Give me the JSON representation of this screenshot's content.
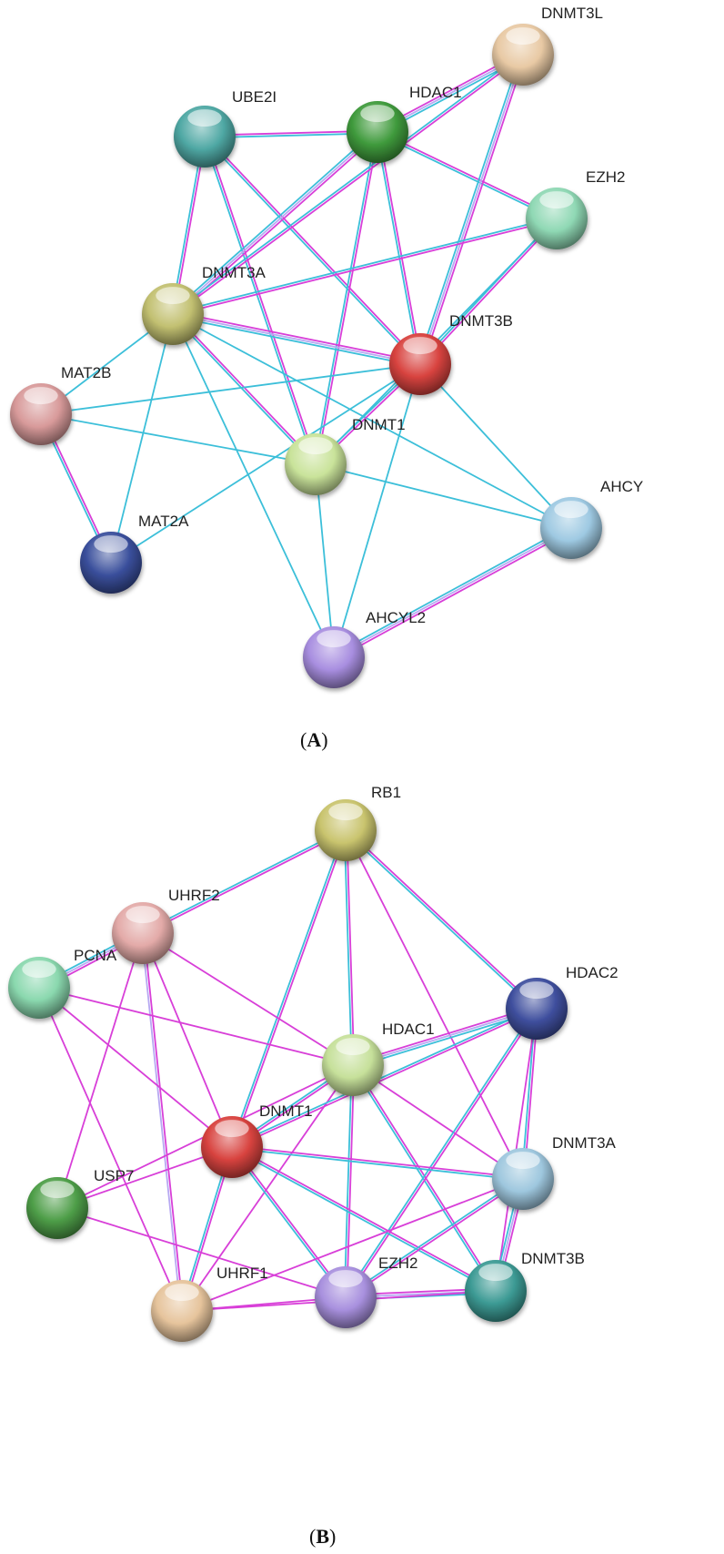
{
  "edge_colors": {
    "d": "#3cbfd9",
    "e": "#d83fd8",
    "c": "#b7a9f2"
  },
  "panels": [
    {
      "caption_open": "(",
      "caption_letter": "A",
      "caption_close": ")",
      "nodes": [
        {
          "id": "DNMT3L",
          "label": "DNMT3L",
          "color": "#e8c9a4"
        },
        {
          "id": "HDAC1",
          "label": "HDAC1",
          "color": "#3f9a3c"
        },
        {
          "id": "UBE2I",
          "label": "UBE2I",
          "color": "#4fa8a4"
        },
        {
          "id": "EZH2",
          "label": "EZH2",
          "color": "#8fd8b4"
        },
        {
          "id": "DNMT3A",
          "label": "DNMT3A",
          "color": "#c2c071"
        },
        {
          "id": "DNMT3B",
          "label": "DNMT3B",
          "color": "#d8433f"
        },
        {
          "id": "MAT2B",
          "label": "MAT2B",
          "color": "#d89a9a"
        },
        {
          "id": "DNMT1",
          "label": "DNMT1",
          "color": "#c9e39a"
        },
        {
          "id": "AHCY",
          "label": "AHCY",
          "color": "#9ec9e2"
        },
        {
          "id": "MAT2A",
          "label": "MAT2A",
          "color": "#3a4f9c"
        },
        {
          "id": "AHCYL2",
          "label": "AHCYL2",
          "color": "#a88ee0"
        }
      ],
      "edges": [
        [
          "UBE2I",
          "HDAC1",
          "ed"
        ],
        [
          "UBE2I",
          "DNMT3A",
          "ed"
        ],
        [
          "UBE2I",
          "DNMT1",
          "ed"
        ],
        [
          "UBE2I",
          "DNMT3B",
          "ed"
        ],
        [
          "HDAC1",
          "DNMT3L",
          "ecd"
        ],
        [
          "HDAC1",
          "DNMT3A",
          "ecd"
        ],
        [
          "HDAC1",
          "DNMT1",
          "ed"
        ],
        [
          "HDAC1",
          "DNMT3B",
          "ed"
        ],
        [
          "HDAC1",
          "EZH2",
          "ed"
        ],
        [
          "DNMT3L",
          "DNMT3B",
          "ecd"
        ],
        [
          "DNMT3L",
          "DNMT3A",
          "ed"
        ],
        [
          "EZH2",
          "DNMT3A",
          "ed"
        ],
        [
          "EZH2",
          "DNMT3B",
          "ed"
        ],
        [
          "EZH2",
          "DNMT1",
          "d"
        ],
        [
          "DNMT3A",
          "DNMT3B",
          "ecd"
        ],
        [
          "DNMT3A",
          "DNMT1",
          "ed"
        ],
        [
          "DNMT3A",
          "MAT2B",
          "d"
        ],
        [
          "DNMT3A",
          "MAT2A",
          "d"
        ],
        [
          "DNMT3A",
          "AHCYL2",
          "d"
        ],
        [
          "DNMT3A",
          "AHCY",
          "d"
        ],
        [
          "DNMT3B",
          "DNMT1",
          "ed"
        ],
        [
          "DNMT3B",
          "MAT2B",
          "d"
        ],
        [
          "DNMT3B",
          "MAT2A",
          "d"
        ],
        [
          "DNMT3B",
          "AHCY",
          "d"
        ],
        [
          "DNMT3B",
          "AHCYL2",
          "d"
        ],
        [
          "DNMT1",
          "MAT2B",
          "d"
        ],
        [
          "DNMT1",
          "AHCY",
          "d"
        ],
        [
          "DNMT1",
          "AHCYL2",
          "d"
        ],
        [
          "MAT2B",
          "MAT2A",
          "ed"
        ],
        [
          "AHCY",
          "AHCYL2",
          "ecd"
        ]
      ]
    },
    {
      "caption_open": "(",
      "caption_letter": "B",
      "caption_close": ")",
      "nodes": [
        {
          "id": "RB1",
          "label": "RB1",
          "color": "#c9c46e"
        },
        {
          "id": "UHRF2",
          "label": "UHRF2",
          "color": "#e3aaa8"
        },
        {
          "id": "PCNA",
          "label": "PCNA",
          "color": "#8ad8ae"
        },
        {
          "id": "HDAC2",
          "label": "HDAC2",
          "color": "#3f4f9e"
        },
        {
          "id": "HDAC1",
          "label": "HDAC1",
          "color": "#c6e09a"
        },
        {
          "id": "DNMT1",
          "label": "DNMT1",
          "color": "#d8433f"
        },
        {
          "id": "DNMT3A",
          "label": "DNMT3A",
          "color": "#9ec7de"
        },
        {
          "id": "USP7",
          "label": "USP7",
          "color": "#4e9e48"
        },
        {
          "id": "UHRF1",
          "label": "UHRF1",
          "color": "#e6c49c"
        },
        {
          "id": "EZH2",
          "label": "EZH2",
          "color": "#a890de"
        },
        {
          "id": "DNMT3B",
          "label": "DNMT3B",
          "color": "#3c9a94"
        }
      ],
      "edges": [
        [
          "RB1",
          "UHRF2",
          "ed"
        ],
        [
          "RB1",
          "HDAC1",
          "ed"
        ],
        [
          "RB1",
          "DNMT1",
          "ed"
        ],
        [
          "RB1",
          "HDAC2",
          "ed"
        ],
        [
          "RB1",
          "DNMT3A",
          "e"
        ],
        [
          "UHRF2",
          "PCNA",
          "ecd"
        ],
        [
          "UHRF2",
          "HDAC1",
          "e"
        ],
        [
          "UHRF2",
          "DNMT1",
          "e"
        ],
        [
          "UHRF2",
          "USP7",
          "e"
        ],
        [
          "UHRF2",
          "UHRF1",
          "ec"
        ],
        [
          "PCNA",
          "HDAC1",
          "e"
        ],
        [
          "PCNA",
          "DNMT1",
          "e"
        ],
        [
          "PCNA",
          "UHRF1",
          "e"
        ],
        [
          "HDAC1",
          "HDAC2",
          "ecd"
        ],
        [
          "HDAC1",
          "DNMT1",
          "ed"
        ],
        [
          "HDAC1",
          "USP7",
          "e"
        ],
        [
          "HDAC1",
          "UHRF1",
          "e"
        ],
        [
          "HDAC1",
          "EZH2",
          "ed"
        ],
        [
          "HDAC1",
          "DNMT3A",
          "e"
        ],
        [
          "HDAC1",
          "DNMT3B",
          "ed"
        ],
        [
          "HDAC2",
          "DNMT1",
          "ed"
        ],
        [
          "HDAC2",
          "EZH2",
          "ed"
        ],
        [
          "HDAC2",
          "DNMT3A",
          "ed"
        ],
        [
          "HDAC2",
          "DNMT3B",
          "e"
        ],
        [
          "DNMT1",
          "DNMT3A",
          "ed"
        ],
        [
          "DNMT1",
          "USP7",
          "e"
        ],
        [
          "DNMT1",
          "UHRF1",
          "ed"
        ],
        [
          "DNMT1",
          "EZH2",
          "ed"
        ],
        [
          "DNMT1",
          "DNMT3B",
          "ed"
        ],
        [
          "DNMT3A",
          "DNMT3B",
          "ecd"
        ],
        [
          "DNMT3A",
          "EZH2",
          "ed"
        ],
        [
          "DNMT3A",
          "UHRF1",
          "e"
        ],
        [
          "USP7",
          "EZH2",
          "e"
        ],
        [
          "UHRF1",
          "EZH2",
          "e"
        ],
        [
          "EZH2",
          "DNMT3B",
          "ecd"
        ],
        [
          "UHRF1",
          "DNMT3B",
          "e"
        ]
      ]
    }
  ]
}
